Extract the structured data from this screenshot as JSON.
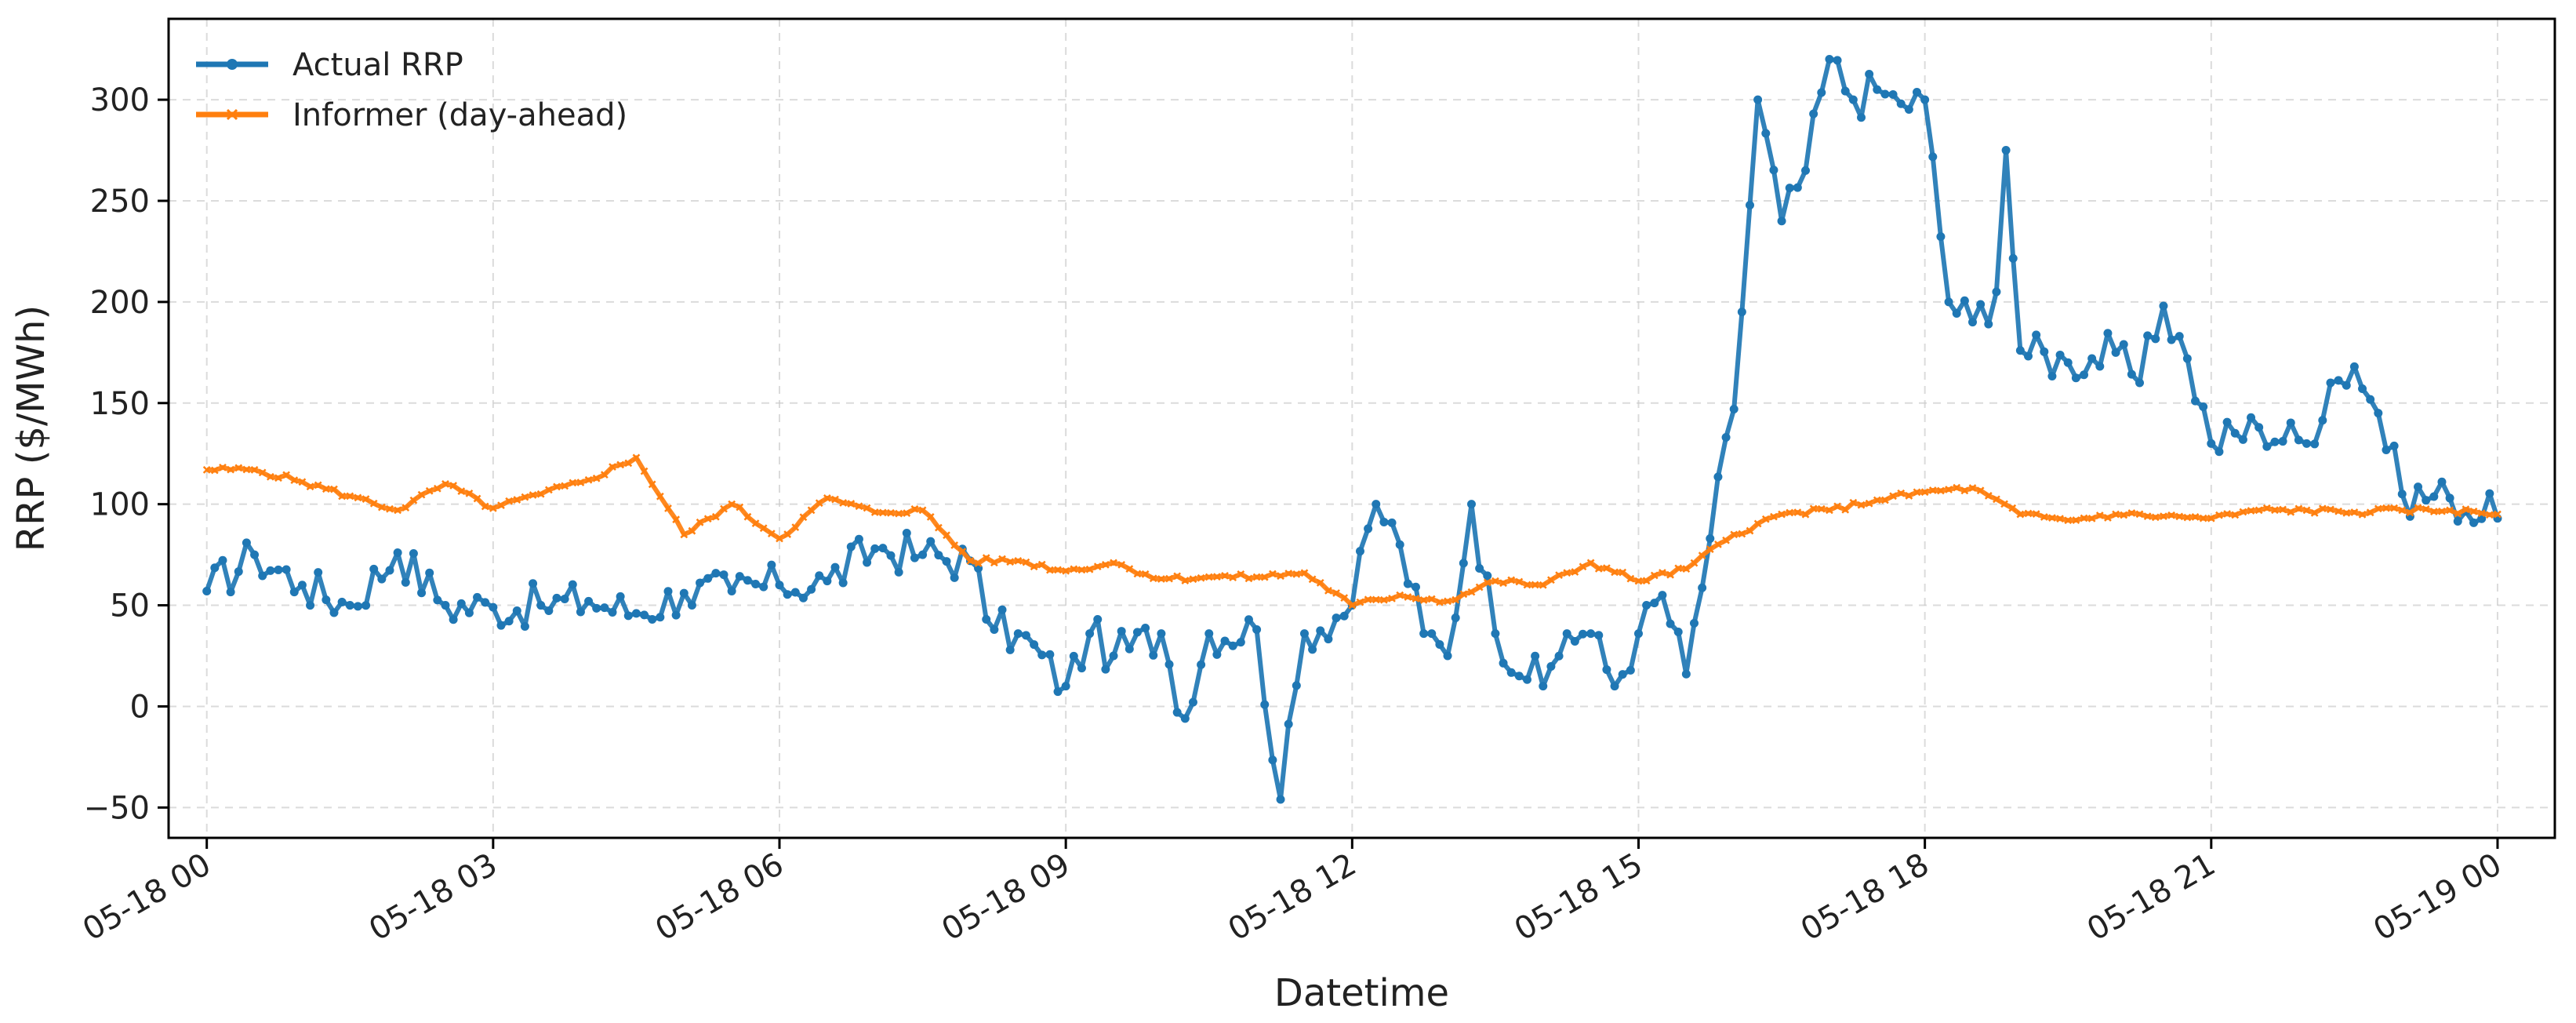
{
  "chart_data": {
    "type": "line",
    "title": "",
    "xlabel": "Datetime",
    "ylabel": "RRP ($/MWh)",
    "x_unit": "hours since 05-18 00:00",
    "xlim": [
      -0.4,
      24.6
    ],
    "ylim": [
      -65,
      340
    ],
    "x_ticks": [
      {
        "value": 0,
        "label": "05-18 00"
      },
      {
        "value": 3,
        "label": "05-18 03"
      },
      {
        "value": 6,
        "label": "05-18 06"
      },
      {
        "value": 9,
        "label": "05-18 09"
      },
      {
        "value": 12,
        "label": "05-18 12"
      },
      {
        "value": 15,
        "label": "05-18 15"
      },
      {
        "value": 18,
        "label": "05-18 18"
      },
      {
        "value": 21,
        "label": "05-18 21"
      },
      {
        "value": 24,
        "label": "05-19 00"
      }
    ],
    "y_ticks": [
      {
        "value": -50,
        "label": "−50"
      },
      {
        "value": 0,
        "label": "0"
      },
      {
        "value": 50,
        "label": "50"
      },
      {
        "value": 100,
        "label": "100"
      },
      {
        "value": 150,
        "label": "150"
      },
      {
        "value": 200,
        "label": "200"
      },
      {
        "value": 250,
        "label": "250"
      },
      {
        "value": 300,
        "label": "300"
      }
    ],
    "grid": true,
    "legend_position": "top-left",
    "series": [
      {
        "name": "Actual RRP",
        "color": "#1f77b4",
        "marker": "circle",
        "points": [
          [
            0,
            57
          ],
          [
            0.5,
            75
          ],
          [
            1,
            60
          ],
          [
            1.5,
            50
          ],
          [
            2,
            76
          ],
          [
            2.5,
            50
          ],
          [
            3,
            49
          ],
          [
            3.5,
            50
          ],
          [
            4,
            52
          ],
          [
            4.5,
            46
          ],
          [
            5,
            56
          ],
          [
            5.5,
            57
          ],
          [
            6,
            60
          ],
          [
            6.5,
            62
          ],
          [
            7,
            78
          ],
          [
            7.5,
            75
          ],
          [
            8,
            72
          ],
          [
            8.25,
            38
          ],
          [
            8.5,
            36
          ],
          [
            9,
            10
          ],
          [
            9.25,
            36
          ],
          [
            9.5,
            25
          ],
          [
            10,
            36
          ],
          [
            10.25,
            -6
          ],
          [
            10.5,
            36
          ],
          [
            11,
            38
          ],
          [
            11.25,
            -46
          ],
          [
            11.5,
            36
          ],
          [
            12,
            50
          ],
          [
            12.25,
            100
          ],
          [
            12.5,
            80
          ],
          [
            12.75,
            36
          ],
          [
            13,
            25
          ],
          [
            13.25,
            100
          ],
          [
            13.5,
            36
          ],
          [
            14,
            10
          ],
          [
            14.25,
            36
          ],
          [
            14.5,
            36
          ],
          [
            14.75,
            10
          ],
          [
            15,
            36
          ],
          [
            15.25,
            55
          ],
          [
            15.5,
            16
          ],
          [
            15.75,
            83
          ],
          [
            16,
            147
          ],
          [
            16.25,
            300
          ],
          [
            16.5,
            240
          ],
          [
            16.75,
            265
          ],
          [
            17,
            320
          ],
          [
            17.25,
            300
          ],
          [
            17.5,
            305
          ],
          [
            17.75,
            298
          ],
          [
            18,
            300
          ],
          [
            18.25,
            200
          ],
          [
            18.5,
            190
          ],
          [
            18.75,
            205
          ],
          [
            18.85,
            275
          ],
          [
            19,
            176
          ],
          [
            19.5,
            170
          ],
          [
            20,
            175
          ],
          [
            20.25,
            160
          ],
          [
            20.5,
            198
          ],
          [
            20.75,
            172
          ],
          [
            21,
            130
          ],
          [
            21.5,
            138
          ],
          [
            22,
            130
          ],
          [
            22.25,
            160
          ],
          [
            22.5,
            168
          ],
          [
            22.75,
            145
          ],
          [
            23,
            105
          ],
          [
            23.5,
            103
          ],
          [
            24,
            93
          ]
        ]
      },
      {
        "name": "Informer (day-ahead)",
        "color": "#ff7f0e",
        "marker": "x",
        "points": [
          [
            0,
            117
          ],
          [
            0.5,
            117
          ],
          [
            1,
            111
          ],
          [
            1.5,
            104
          ],
          [
            2,
            97
          ],
          [
            2.5,
            110
          ],
          [
            3,
            98
          ],
          [
            3.5,
            105
          ],
          [
            4,
            112
          ],
          [
            4.5,
            123
          ],
          [
            5,
            85
          ],
          [
            5.5,
            100
          ],
          [
            6,
            83
          ],
          [
            6.5,
            103
          ],
          [
            7,
            96
          ],
          [
            7.5,
            97
          ],
          [
            8,
            72
          ],
          [
            8.5,
            72
          ],
          [
            9,
            67
          ],
          [
            9.5,
            71
          ],
          [
            10,
            63
          ],
          [
            10.5,
            64
          ],
          [
            11,
            64
          ],
          [
            11.5,
            66
          ],
          [
            12,
            50
          ],
          [
            12.5,
            55
          ],
          [
            13,
            52
          ],
          [
            13.5,
            62
          ],
          [
            14,
            60
          ],
          [
            14.5,
            71
          ],
          [
            15,
            62
          ],
          [
            15.5,
            68
          ],
          [
            16,
            85
          ],
          [
            16.5,
            95
          ],
          [
            17,
            97
          ],
          [
            17.5,
            102
          ],
          [
            18,
            106
          ],
          [
            18.5,
            108
          ],
          [
            19,
            95
          ],
          [
            19.5,
            92
          ],
          [
            20,
            95
          ],
          [
            20.5,
            94
          ],
          [
            21,
            93
          ],
          [
            21.5,
            97
          ],
          [
            22,
            97
          ],
          [
            22.5,
            96
          ],
          [
            23,
            97
          ],
          [
            23.5,
            97
          ],
          [
            24,
            95
          ]
        ]
      }
    ]
  }
}
